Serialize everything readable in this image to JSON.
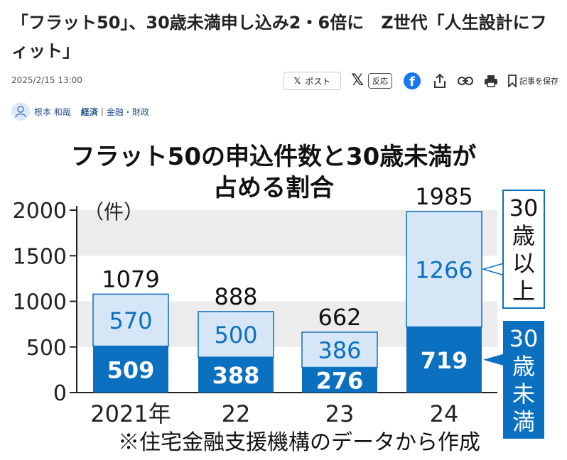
{
  "article": {
    "headline": "「フラット50」、30歳未満申し込み2・6倍に　Z世代「人生設計にフィット」",
    "date": "2025/2/15 13:00",
    "author": "根本 和哉",
    "category": "経済",
    "subcategory": "金融・財政"
  },
  "share": {
    "post_label": "ポスト",
    "react_label": "反応",
    "save_label": "記事を保存"
  },
  "chart_data": {
    "type": "bar",
    "stacked": true,
    "title_lines": [
      "フラット50の申込件数と30歳未満が",
      "占める割合"
    ],
    "unit_label": "（件）",
    "categories": [
      "2021年",
      "22",
      "23",
      "24"
    ],
    "series": [
      {
        "name": "30歳未満",
        "values": [
          509,
          388,
          276,
          719
        ],
        "color": "#0b70bf"
      },
      {
        "name": "30歳以上",
        "values": [
          570,
          500,
          386,
          1266
        ],
        "color": "#d6e6f6"
      }
    ],
    "totals": [
      1079,
      888,
      662,
      1985
    ],
    "ylim": [
      0,
      2000
    ],
    "yticks": [
      0,
      500,
      1000,
      1500,
      2000
    ],
    "legend_labels": [
      "30\n歳\n以\n上",
      "30\n歳\n未\n満"
    ],
    "source_note": "※住宅金融支援機構のデータから作成",
    "colors": {
      "dark": "#0b70bf",
      "light": "#d6e6f6",
      "band": "#ececec",
      "value_light_text": "#0b70bf"
    }
  }
}
